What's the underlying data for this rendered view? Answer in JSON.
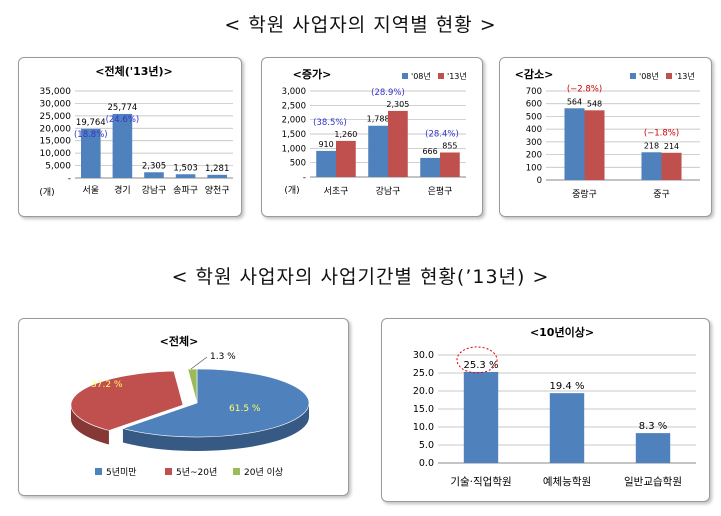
{
  "headings": {
    "top": "< 학원 사업자의 지역별 현황 >",
    "bottom": "< 학원 사업자의 사업기간별 현황(’13년) >"
  },
  "colors": {
    "blue": "#4f81bd",
    "red": "#c0504d",
    "green": "#9bbb59",
    "annotation": "#3333cc",
    "annotation_red": "#cc0000"
  },
  "chart_data": [
    {
      "type": "bar",
      "title": "<전체('13년)>",
      "unit_label": "(개)",
      "categories": [
        "서울",
        "경기",
        "강남구",
        "송파구",
        "양천구"
      ],
      "series": [
        {
          "values": [
            19764,
            25774,
            2305,
            1503,
            1281
          ]
        }
      ],
      "value_labels": [
        "19,764",
        "25,774",
        "2,305",
        "1,503",
        "1,281"
      ],
      "share_labels": [
        "(18.8%)",
        "(24.6%)",
        "",
        "",
        ""
      ],
      "yticks": [
        "-",
        "5,000",
        "10,000",
        "15,000",
        "20,000",
        "25,000",
        "30,000",
        "35,000"
      ],
      "ylim": [
        0,
        35000
      ],
      "grid": true
    },
    {
      "type": "bar",
      "title": "<증가>",
      "unit_label": "(개)",
      "categories": [
        "서초구",
        "강남구",
        "은평구"
      ],
      "series": [
        {
          "name": "'08년",
          "values": [
            910,
            1788,
            666
          ]
        },
        {
          "name": "'13년",
          "values": [
            1260,
            2305,
            855
          ]
        }
      ],
      "change_labels": [
        "(38.5%)",
        "(28.9%)",
        "(28.4%)"
      ],
      "yticks": [
        "-",
        "500",
        "1,000",
        "1,500",
        "2,000",
        "2,500",
        "3,000"
      ],
      "ylim": [
        0,
        3000
      ],
      "legend": "top-right",
      "grid": true
    },
    {
      "type": "bar",
      "title": "<감소>",
      "categories": [
        "중랑구",
        "중구"
      ],
      "series": [
        {
          "name": "'08년",
          "values": [
            564,
            218
          ]
        },
        {
          "name": "'13년",
          "values": [
            548,
            214
          ]
        }
      ],
      "change_labels": [
        "(−2.8%)",
        "(−1.8%)"
      ],
      "yticks": [
        "0",
        "100",
        "200",
        "300",
        "400",
        "500",
        "600",
        "700"
      ],
      "ylim": [
        0,
        700
      ],
      "legend": "top-right",
      "grid": true
    },
    {
      "type": "pie",
      "title": "<전체>",
      "labels": [
        "5년미만",
        "5년~20년",
        "20년 이상"
      ],
      "values": [
        61.5,
        37.2,
        1.3
      ],
      "value_labels": [
        "61.5 %",
        "37.2 %",
        "1.3 %"
      ],
      "legend": "bottom"
    },
    {
      "type": "bar",
      "title": "<10년이상>",
      "categories": [
        "기술·직업학원",
        "예체능학원",
        "일반교습학원"
      ],
      "series": [
        {
          "values": [
            25.3,
            19.4,
            8.3
          ]
        }
      ],
      "value_labels": [
        "25.3 %",
        "19.4 %",
        "8.3 %"
      ],
      "yticks": [
        "0.0",
        "5.0",
        "10.0",
        "15.0",
        "20.0",
        "25.0",
        "30.0"
      ],
      "ylim": [
        0,
        30
      ],
      "grid": true
    }
  ]
}
